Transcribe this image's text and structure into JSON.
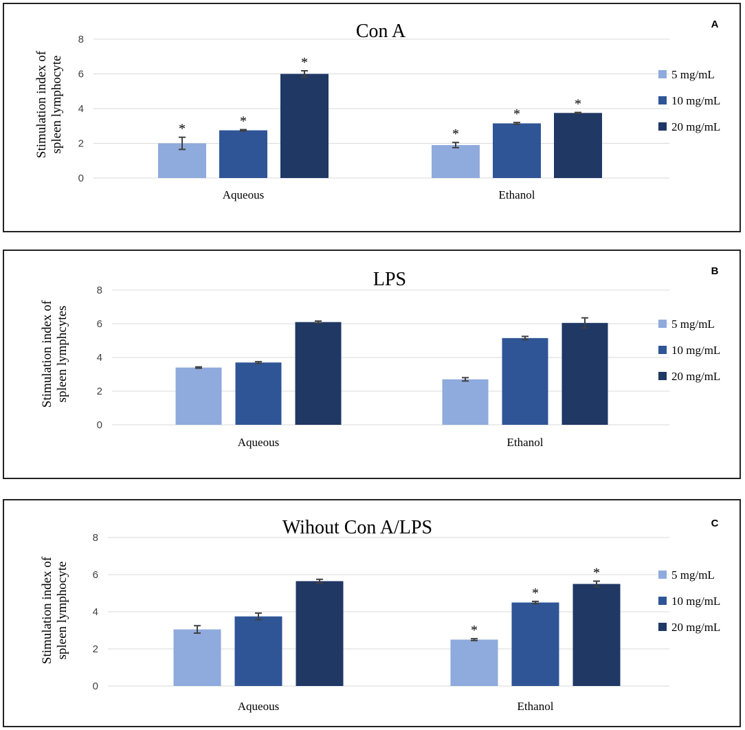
{
  "chart_data": [
    {
      "type": "bar",
      "panel_label": "A",
      "title": "Con A",
      "ylabel_lines": [
        "Stimulation index of",
        "spleen lymphocyte"
      ],
      "ylim": [
        0,
        8
      ],
      "yticks": [
        "0",
        "2",
        "4",
        "6",
        "8"
      ],
      "categories": [
        "Aqueous",
        "Ethanol"
      ],
      "series": [
        {
          "name": "5 mg/mL",
          "values": [
            2.0,
            1.9
          ],
          "errors": [
            0.35,
            0.15
          ],
          "significant": [
            true,
            true
          ]
        },
        {
          "name": "10 mg/mL",
          "values": [
            2.75,
            3.15
          ],
          "errors": [
            0.04,
            0.05
          ],
          "significant": [
            true,
            true
          ]
        },
        {
          "name": "20 mg/mL",
          "values": [
            6.0,
            3.75
          ],
          "errors": [
            0.18,
            0.03
          ],
          "significant": [
            true,
            true
          ]
        }
      ],
      "significance_marker": "*"
    },
    {
      "type": "bar",
      "panel_label": "B",
      "title": "LPS",
      "ylabel_lines": [
        "Stimulation index of",
        "spleen lymphcytes"
      ],
      "ylim": [
        0,
        8
      ],
      "yticks": [
        "0",
        "2",
        "4",
        "6",
        "8"
      ],
      "categories": [
        "Aqueous",
        "Ethanol"
      ],
      "series": [
        {
          "name": "5 mg/mL",
          "values": [
            3.4,
            2.7
          ],
          "errors": [
            0.04,
            0.1
          ],
          "significant": [
            false,
            false
          ]
        },
        {
          "name": "10 mg/mL",
          "values": [
            3.7,
            5.15
          ],
          "errors": [
            0.05,
            0.1
          ],
          "significant": [
            false,
            false
          ]
        },
        {
          "name": "20 mg/mL",
          "values": [
            6.1,
            6.05
          ],
          "errors": [
            0.06,
            0.3
          ],
          "significant": [
            false,
            false
          ]
        }
      ],
      "significance_marker": "*"
    },
    {
      "type": "bar",
      "panel_label": "C",
      "title": "Wihout Con A/LPS",
      "ylabel_lines": [
        "Stimulation index of",
        "spleen lymphocyte"
      ],
      "ylim": [
        0,
        8
      ],
      "yticks": [
        "0",
        "2",
        "4",
        "6",
        "8"
      ],
      "categories": [
        "Aqueous",
        "Ethanol"
      ],
      "series": [
        {
          "name": "5 mg/mL",
          "values": [
            3.05,
            2.5
          ],
          "errors": [
            0.2,
            0.05
          ],
          "significant": [
            false,
            true
          ]
        },
        {
          "name": "10 mg/mL",
          "values": [
            3.75,
            4.5
          ],
          "errors": [
            0.18,
            0.06
          ],
          "significant": [
            false,
            true
          ]
        },
        {
          "name": "20 mg/mL",
          "values": [
            5.65,
            5.5
          ],
          "errors": [
            0.1,
            0.15
          ],
          "significant": [
            false,
            true
          ]
        }
      ],
      "significance_marker": "*"
    }
  ],
  "colors": {
    "series": [
      "#8faadc",
      "#2f5597",
      "#1f3864"
    ],
    "grid": "#d9d9d9",
    "axis_text": "#404040",
    "error_bar": "#404040"
  }
}
